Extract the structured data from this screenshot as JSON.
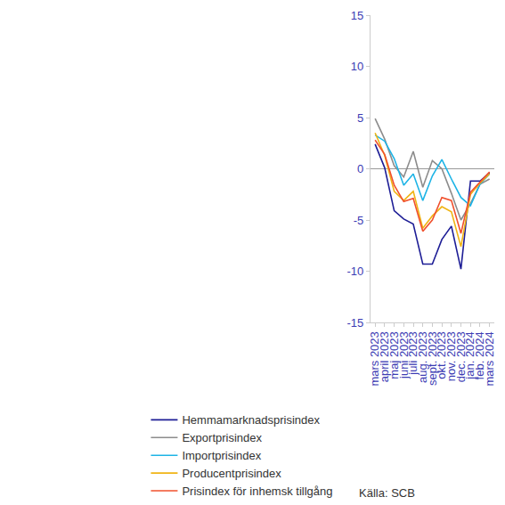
{
  "chart_data": {
    "type": "line",
    "categories": [
      "mars 2023",
      "april 2023",
      "maj 2023",
      "juni 2023",
      "juli 2023",
      "aug. 2023",
      "sept. 2023",
      "okt. 2023",
      "nov. 2023",
      "dec. 2023",
      "jan. 2024",
      "feb. 2024",
      "mars 2024"
    ],
    "series": [
      {
        "name": "Hemmamarknadsprisindex",
        "color": "#1e1e96",
        "values": [
          2.4,
          0.1,
          -4.1,
          -4.9,
          -5.4,
          -9.3,
          -9.3,
          -6.9,
          -5.6,
          -9.8,
          -1.2,
          -1.2,
          -0.4
        ]
      },
      {
        "name": "Exportprisindex",
        "color": "#8c8c8c",
        "values": [
          4.9,
          2.9,
          0.3,
          -0.8,
          1.7,
          -1.8,
          0.8,
          0.0,
          -2.4,
          -5.0,
          -3.4,
          -1.5,
          -1.0
        ]
      },
      {
        "name": "Importprisindex",
        "color": "#1eb4e6",
        "values": [
          3.3,
          2.7,
          1.0,
          -1.6,
          -0.5,
          -3.1,
          -0.7,
          0.9,
          -1.0,
          -2.8,
          -3.6,
          -1.5,
          -0.5
        ]
      },
      {
        "name": "Producentprisindex",
        "color": "#f0b414",
        "values": [
          3.5,
          1.3,
          -2.2,
          -3.1,
          -2.2,
          -5.8,
          -4.6,
          -3.7,
          -4.2,
          -7.6,
          -2.5,
          -1.4,
          -0.5
        ]
      },
      {
        "name": "Prisindex för inhemsk tillgång",
        "color": "#f0502d",
        "values": [
          2.8,
          1.4,
          -1.6,
          -3.2,
          -2.9,
          -6.1,
          -5.0,
          -2.8,
          -3.1,
          -6.3,
          -2.3,
          -1.3,
          -0.3
        ]
      }
    ],
    "ylim": [
      -15,
      15
    ],
    "yticks": [
      -15,
      -10,
      -5,
      0,
      5,
      10,
      15
    ],
    "grid": false,
    "legend": "bottom",
    "source": "Källa: SCB"
  }
}
